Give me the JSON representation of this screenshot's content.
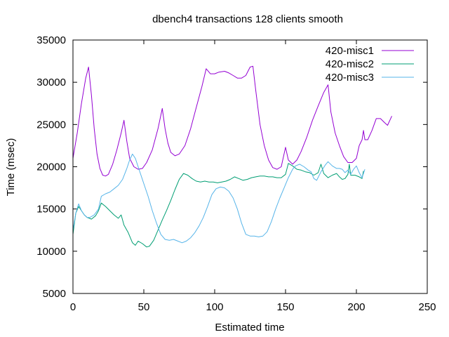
{
  "chart_data": {
    "type": "line",
    "title": "dbench4 transactions 128 clients smooth",
    "xlabel": "Estimated time",
    "ylabel": "Time (msec)",
    "xlim": [
      0,
      250
    ],
    "ylim": [
      5000,
      35000
    ],
    "xticks": [
      0,
      50,
      100,
      150,
      200,
      250
    ],
    "yticks": [
      5000,
      10000,
      15000,
      20000,
      25000,
      30000,
      35000
    ],
    "grid": false,
    "legend_position": "top-right",
    "series": [
      {
        "name": "420-misc1",
        "color": "#9400d3",
        "points": [
          [
            0,
            21000
          ],
          [
            3,
            24000
          ],
          [
            6,
            27500
          ],
          [
            9,
            30500
          ],
          [
            11,
            31800
          ],
          [
            13,
            28500
          ],
          [
            15,
            24500
          ],
          [
            17,
            21500
          ],
          [
            19,
            19800
          ],
          [
            21,
            19000
          ],
          [
            23,
            18900
          ],
          [
            25,
            19100
          ],
          [
            28,
            20300
          ],
          [
            31,
            22000
          ],
          [
            34,
            24000
          ],
          [
            36,
            25500
          ],
          [
            38,
            23000
          ],
          [
            40,
            21000
          ],
          [
            43,
            20000
          ],
          [
            46,
            19700
          ],
          [
            49,
            19800
          ],
          [
            52,
            20500
          ],
          [
            56,
            22000
          ],
          [
            60,
            24500
          ],
          [
            63,
            26900
          ],
          [
            65,
            24500
          ],
          [
            67,
            22800
          ],
          [
            69,
            21700
          ],
          [
            72,
            21300
          ],
          [
            75,
            21500
          ],
          [
            79,
            22500
          ],
          [
            83,
            24500
          ],
          [
            87,
            27000
          ],
          [
            91,
            29500
          ],
          [
            94,
            31600
          ],
          [
            97,
            31000
          ],
          [
            100,
            31000
          ],
          [
            103,
            31200
          ],
          [
            107,
            31300
          ],
          [
            110,
            31100
          ],
          [
            113,
            30800
          ],
          [
            116,
            30500
          ],
          [
            119,
            30500
          ],
          [
            122,
            30800
          ],
          [
            125,
            31800
          ],
          [
            127,
            31900
          ],
          [
            129,
            29000
          ],
          [
            132,
            25000
          ],
          [
            135,
            22500
          ],
          [
            138,
            20800
          ],
          [
            141,
            19900
          ],
          [
            144,
            19700
          ],
          [
            147,
            20000
          ],
          [
            150,
            22300
          ],
          [
            152,
            20800
          ],
          [
            155,
            20300
          ],
          [
            158,
            20800
          ],
          [
            161,
            21800
          ],
          [
            165,
            23500
          ],
          [
            169,
            25500
          ],
          [
            173,
            27200
          ],
          [
            177,
            28800
          ],
          [
            180,
            29700
          ],
          [
            182,
            26500
          ],
          [
            185,
            24000
          ],
          [
            188,
            22500
          ],
          [
            191,
            21200
          ],
          [
            194,
            20500
          ],
          [
            197,
            20500
          ],
          [
            200,
            21000
          ],
          [
            202,
            22500
          ],
          [
            204,
            23200
          ],
          [
            205,
            24300
          ],
          [
            206,
            23200
          ],
          [
            208,
            23200
          ],
          [
            211,
            24300
          ],
          [
            214,
            25700
          ],
          [
            217,
            25700
          ],
          [
            220,
            25200
          ],
          [
            222,
            24900
          ],
          [
            225,
            26000
          ]
        ]
      },
      {
        "name": "420-misc2",
        "color": "#009e73",
        "points": [
          [
            0,
            12000
          ],
          [
            2,
            14500
          ],
          [
            4,
            15300
          ],
          [
            6,
            14800
          ],
          [
            8,
            14300
          ],
          [
            10,
            14000
          ],
          [
            13,
            13800
          ],
          [
            16,
            14200
          ],
          [
            18,
            14800
          ],
          [
            20,
            15700
          ],
          [
            23,
            15300
          ],
          [
            26,
            14800
          ],
          [
            29,
            14300
          ],
          [
            32,
            13900
          ],
          [
            34,
            14300
          ],
          [
            36,
            13100
          ],
          [
            39,
            12200
          ],
          [
            42,
            11000
          ],
          [
            44,
            10700
          ],
          [
            46,
            11200
          ],
          [
            49,
            10900
          ],
          [
            52,
            10500
          ],
          [
            54,
            10600
          ],
          [
            57,
            11300
          ],
          [
            60,
            12500
          ],
          [
            63,
            13700
          ],
          [
            66,
            14800
          ],
          [
            69,
            16000
          ],
          [
            72,
            17300
          ],
          [
            75,
            18500
          ],
          [
            78,
            19200
          ],
          [
            81,
            19000
          ],
          [
            84,
            18600
          ],
          [
            87,
            18300
          ],
          [
            90,
            18200
          ],
          [
            93,
            18300
          ],
          [
            96,
            18200
          ],
          [
            99,
            18200
          ],
          [
            102,
            18100
          ],
          [
            105,
            18200
          ],
          [
            108,
            18300
          ],
          [
            111,
            18500
          ],
          [
            114,
            18800
          ],
          [
            117,
            18600
          ],
          [
            120,
            18400
          ],
          [
            123,
            18500
          ],
          [
            126,
            18700
          ],
          [
            129,
            18800
          ],
          [
            132,
            18900
          ],
          [
            135,
            18900
          ],
          [
            138,
            18800
          ],
          [
            141,
            18800
          ],
          [
            144,
            18700
          ],
          [
            147,
            18700
          ],
          [
            150,
            19100
          ],
          [
            152,
            20400
          ],
          [
            155,
            20100
          ],
          [
            158,
            19700
          ],
          [
            161,
            19600
          ],
          [
            164,
            19400
          ],
          [
            167,
            19300
          ],
          [
            170,
            19000
          ],
          [
            173,
            19300
          ],
          [
            175,
            20300
          ],
          [
            177,
            19200
          ],
          [
            180,
            18700
          ],
          [
            183,
            19000
          ],
          [
            186,
            19200
          ],
          [
            188,
            18800
          ],
          [
            190,
            18500
          ],
          [
            192,
            18600
          ],
          [
            194,
            19100
          ],
          [
            195,
            20300
          ],
          [
            196,
            19000
          ],
          [
            199,
            19000
          ],
          [
            202,
            18800
          ],
          [
            204,
            18600
          ],
          [
            205,
            19500
          ]
        ]
      },
      {
        "name": "420-misc3",
        "color": "#56b4e9",
        "points": [
          [
            0,
            12500
          ],
          [
            2,
            14500
          ],
          [
            4,
            15600
          ],
          [
            6,
            14800
          ],
          [
            8,
            14300
          ],
          [
            10,
            14000
          ],
          [
            12,
            14000
          ],
          [
            15,
            14300
          ],
          [
            18,
            15000
          ],
          [
            20,
            16500
          ],
          [
            23,
            16800
          ],
          [
            26,
            17000
          ],
          [
            29,
            17400
          ],
          [
            32,
            17800
          ],
          [
            35,
            18500
          ],
          [
            38,
            19800
          ],
          [
            40,
            20800
          ],
          [
            42,
            21500
          ],
          [
            44,
            21000
          ],
          [
            47,
            19500
          ],
          [
            50,
            18000
          ],
          [
            53,
            16500
          ],
          [
            56,
            14800
          ],
          [
            59,
            13300
          ],
          [
            62,
            12000
          ],
          [
            65,
            11400
          ],
          [
            68,
            11300
          ],
          [
            71,
            11400
          ],
          [
            74,
            11200
          ],
          [
            77,
            11000
          ],
          [
            80,
            11200
          ],
          [
            83,
            11600
          ],
          [
            86,
            12200
          ],
          [
            89,
            13000
          ],
          [
            92,
            14000
          ],
          [
            95,
            15300
          ],
          [
            98,
            16700
          ],
          [
            101,
            17400
          ],
          [
            104,
            17600
          ],
          [
            107,
            17500
          ],
          [
            110,
            17100
          ],
          [
            113,
            16300
          ],
          [
            116,
            15000
          ],
          [
            119,
            13300
          ],
          [
            122,
            12000
          ],
          [
            125,
            11800
          ],
          [
            128,
            11800
          ],
          [
            131,
            11700
          ],
          [
            134,
            11800
          ],
          [
            137,
            12300
          ],
          [
            140,
            13500
          ],
          [
            143,
            15000
          ],
          [
            146,
            16300
          ],
          [
            149,
            17500
          ],
          [
            152,
            18700
          ],
          [
            155,
            19700
          ],
          [
            157,
            20100
          ],
          [
            160,
            20300
          ],
          [
            163,
            20000
          ],
          [
            166,
            19600
          ],
          [
            168,
            19400
          ],
          [
            170,
            18600
          ],
          [
            172,
            18400
          ],
          [
            175,
            19400
          ],
          [
            178,
            20200
          ],
          [
            180,
            20600
          ],
          [
            183,
            20100
          ],
          [
            186,
            19800
          ],
          [
            188,
            19800
          ],
          [
            190,
            19700
          ],
          [
            192,
            19300
          ],
          [
            194,
            19600
          ],
          [
            196,
            19100
          ],
          [
            198,
            19700
          ],
          [
            200,
            20100
          ],
          [
            202,
            19300
          ],
          [
            204,
            18700
          ],
          [
            206,
            19700
          ]
        ]
      }
    ]
  }
}
